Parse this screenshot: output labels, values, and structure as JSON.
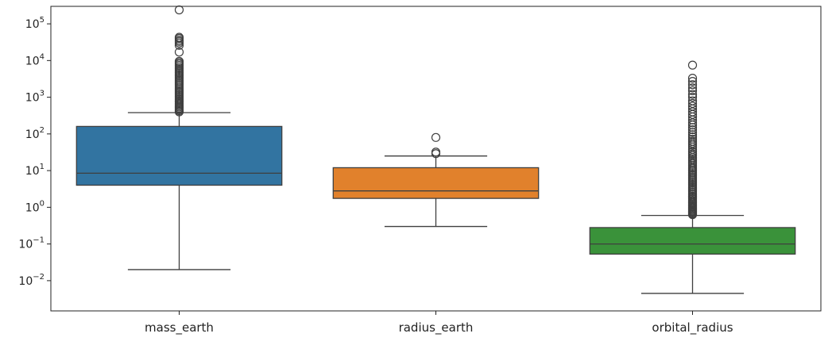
{
  "chart_data": {
    "type": "box",
    "title": "",
    "xlabel": "",
    "ylabel": "",
    "yscale": "log",
    "ylim": [
      0.0015,
      300000
    ],
    "y_ticks": [
      {
        "value": 0.01,
        "base": "10",
        "exp": "−2"
      },
      {
        "value": 0.1,
        "base": "10",
        "exp": "−1"
      },
      {
        "value": 1,
        "base": "10",
        "exp": "0"
      },
      {
        "value": 10,
        "base": "10",
        "exp": "1"
      },
      {
        "value": 100,
        "base": "10",
        "exp": "2"
      },
      {
        "value": 1000,
        "base": "10",
        "exp": "3"
      },
      {
        "value": 10000,
        "base": "10",
        "exp": "4"
      },
      {
        "value": 100000,
        "base": "10",
        "exp": "5"
      }
    ],
    "grid": false,
    "legend": "none",
    "categories": [
      "mass_earth",
      "radius_earth",
      "orbital_radius"
    ],
    "boxes": [
      {
        "category": "mass_earth",
        "color": "#3274a1",
        "whisker_low": 0.02,
        "q1": 4.0,
        "median": 8.5,
        "q3": 160,
        "whisker_high": 380,
        "outliers": [
          400,
          430,
          460,
          500,
          540,
          580,
          630,
          680,
          740,
          800,
          870,
          950,
          1050,
          1150,
          1260,
          1380,
          1500,
          1650,
          1800,
          2000,
          2200,
          2400,
          2650,
          2900,
          3200,
          3500,
          3850,
          4200,
          4600,
          5000,
          5500,
          6000,
          6600,
          7300,
          8000,
          8700,
          9500,
          17000,
          26000,
          30000,
          33000,
          36000,
          40000,
          43000,
          240000
        ]
      },
      {
        "category": "radius_earth",
        "color": "#e1812c",
        "whisker_low": 0.3,
        "q1": 1.75,
        "median": 2.8,
        "q3": 12,
        "whisker_high": 25,
        "outliers": [
          29,
          32,
          80
        ]
      },
      {
        "category": "orbital_radius",
        "color": "#3a923a",
        "whisker_low": 0.0045,
        "q1": 0.053,
        "median": 0.1,
        "q3": 0.28,
        "whisker_high": 0.6,
        "outliers": [
          0.63,
          0.66,
          0.7,
          0.74,
          0.78,
          0.83,
          0.88,
          0.94,
          1.0,
          1.07,
          1.15,
          1.24,
          1.33,
          1.43,
          1.55,
          1.7,
          1.85,
          2.0,
          2.2,
          2.4,
          2.65,
          2.9,
          3.2,
          3.5,
          3.85,
          4.2,
          4.6,
          5.0,
          5.5,
          6.0,
          6.6,
          7.3,
          8.0,
          8.8,
          9.7,
          10.5,
          11.5,
          12.5,
          14,
          15.5,
          17,
          19,
          21,
          23,
          26,
          29,
          33,
          38,
          44,
          50,
          56,
          63,
          72,
          83,
          95,
          110,
          130,
          150,
          175,
          200,
          240,
          290,
          340,
          400,
          480,
          570,
          680,
          800,
          1000,
          1200,
          1500,
          1800,
          2200,
          2700,
          3300,
          7500
        ]
      }
    ]
  }
}
